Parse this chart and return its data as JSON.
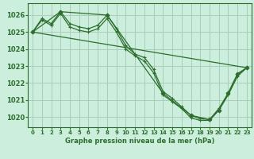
{
  "title": "Graphe pression niveau de la mer (hPa)",
  "background_color": "#cceedd",
  "grid_color": "#aaccbb",
  "line_color": "#2d6e2d",
  "xlim": [
    -0.5,
    23.5
  ],
  "ylim": [
    1019.4,
    1026.7
  ],
  "yticks": [
    1020,
    1021,
    1022,
    1023,
    1024,
    1025,
    1026
  ],
  "xticks": [
    0,
    1,
    2,
    3,
    4,
    5,
    6,
    7,
    8,
    9,
    10,
    11,
    12,
    13,
    14,
    15,
    16,
    17,
    18,
    19,
    20,
    21,
    22,
    23
  ],
  "lines": [
    {
      "x": [
        0,
        23
      ],
      "y": [
        1025.0,
        1022.9
      ],
      "marker": null,
      "lw": 0.9
    },
    {
      "x": [
        0,
        1,
        2,
        3,
        4,
        5,
        6,
        7,
        8,
        9,
        10,
        11,
        12,
        13,
        14,
        15,
        16,
        17,
        18,
        19,
        20,
        21,
        22,
        23
      ],
      "y": [
        1025.0,
        1025.8,
        1025.5,
        1026.2,
        1025.5,
        1025.3,
        1025.2,
        1025.4,
        1026.0,
        1025.2,
        1024.2,
        1023.7,
        1023.5,
        1022.8,
        1021.5,
        1021.1,
        1020.6,
        1020.1,
        1019.9,
        1019.85,
        1020.5,
        1021.4,
        1022.5,
        1022.9
      ],
      "marker": "+",
      "lw": 0.9
    },
    {
      "x": [
        0,
        1,
        2,
        3,
        4,
        5,
        6,
        7,
        8,
        9,
        10,
        11,
        12,
        13,
        14,
        15,
        16,
        17,
        18,
        19,
        20,
        21,
        22,
        23
      ],
      "y": [
        1025.0,
        1025.7,
        1025.4,
        1026.1,
        1025.3,
        1025.1,
        1025.0,
        1025.2,
        1025.8,
        1025.0,
        1024.0,
        1023.6,
        1023.3,
        1022.6,
        1021.3,
        1020.9,
        1020.5,
        1019.95,
        1019.8,
        1019.8,
        1020.4,
        1021.3,
        1022.4,
        1022.9
      ],
      "marker": "+",
      "lw": 0.9
    },
    {
      "x": [
        0,
        3,
        8,
        14,
        17,
        19,
        20,
        21,
        22,
        23
      ],
      "y": [
        1025.0,
        1026.2,
        1026.0,
        1021.4,
        1020.1,
        1019.85,
        1020.4,
        1021.4,
        1022.55,
        1022.9
      ],
      "marker": "D",
      "lw": 0.9
    }
  ]
}
